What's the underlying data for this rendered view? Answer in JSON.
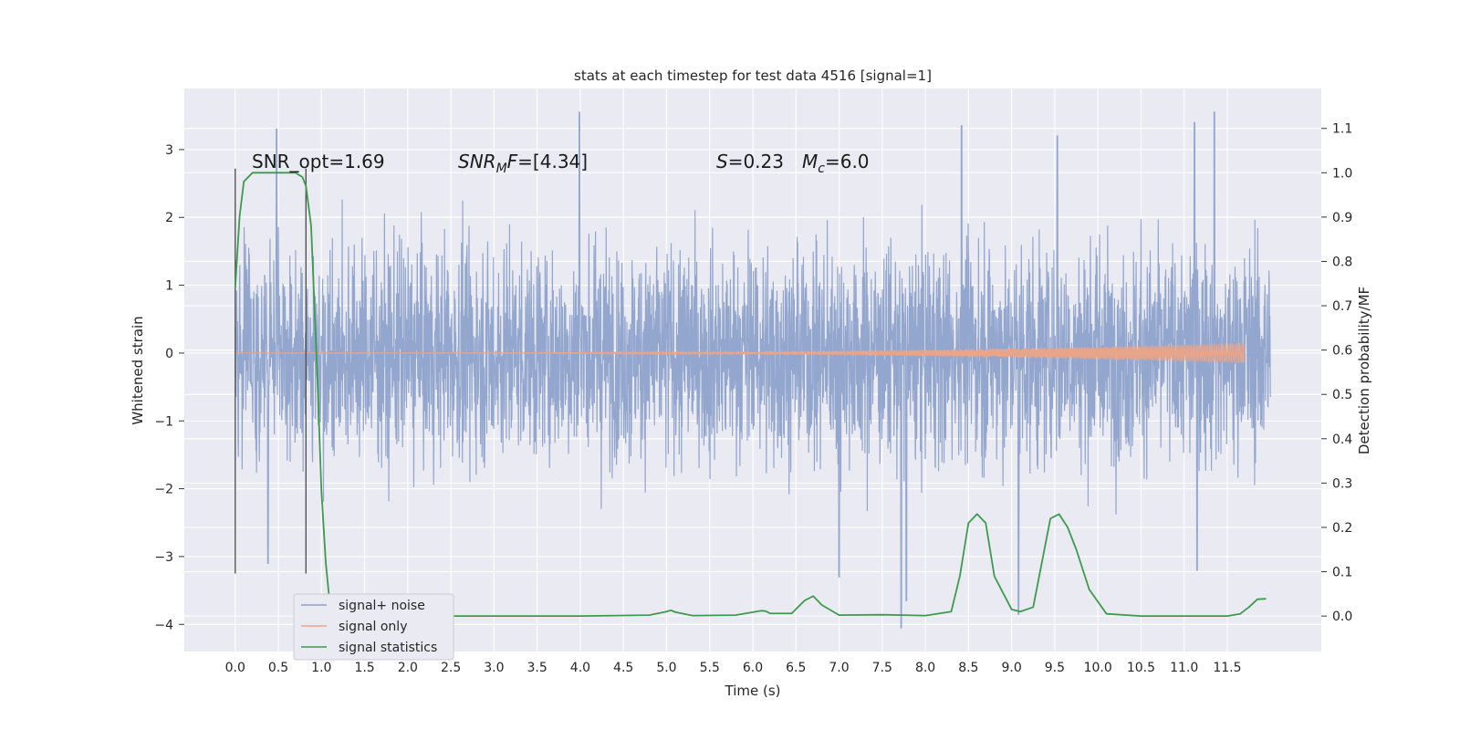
{
  "chart_data": {
    "type": "line",
    "title": "stats at each timestep for test data 4516 [signal=1]",
    "xlabel": "Time (s)",
    "ylabel": "Whitened strain",
    "y2label": "Detection probability/MF",
    "xlim": [
      -0.59,
      12.59
    ],
    "ylim": [
      -4.4,
      3.9
    ],
    "y2lim": [
      -0.08,
      1.19
    ],
    "x_ticks": [
      "0.0",
      "0.5",
      "1.0",
      "1.5",
      "2.0",
      "2.5",
      "3.0",
      "3.5",
      "4.0",
      "4.5",
      "5.0",
      "5.5",
      "6.0",
      "6.5",
      "7.0",
      "7.5",
      "8.0",
      "8.5",
      "9.0",
      "9.5",
      "10.0",
      "10.5",
      "11.0",
      "11.5"
    ],
    "y_ticks": [
      "3",
      "2",
      "1",
      "0",
      "−1",
      "−2",
      "−3",
      "−4"
    ],
    "y2_ticks": [
      "1.1",
      "1.0",
      "0.9",
      "0.8",
      "0.7",
      "0.6",
      "0.5",
      "0.4",
      "0.3",
      "0.2",
      "0.1",
      "0.0"
    ],
    "grid": true,
    "legend": {
      "placement": "lower-left",
      "entries": [
        {
          "label": "signal+ noise",
          "color": "#8ea2cb"
        },
        {
          "label": "signal only",
          "color": "#e8a58a"
        },
        {
          "label": "signal statistics",
          "color": "#3d9a4f"
        }
      ]
    },
    "annotations": [
      {
        "name": "snr-opt",
        "parts": [
          {
            "text": "SNR_opt=1.69"
          }
        ]
      },
      {
        "name": "snr-mf",
        "parts": [
          {
            "text": "SNR",
            "italic": true
          },
          {
            "text": "M",
            "italic": true,
            "sub": true
          },
          {
            "text": "F",
            "italic": true
          },
          {
            "text": "=[4.34]"
          }
        ]
      },
      {
        "name": "s-value",
        "parts": [
          {
            "text": "S",
            "italic": true
          },
          {
            "text": "=0.23"
          }
        ]
      },
      {
        "name": "mc-value",
        "parts": [
          {
            "text": "M",
            "italic": true
          },
          {
            "text": "c",
            "italic": true,
            "sub": true
          },
          {
            "text": "=6.0"
          }
        ]
      }
    ],
    "noise_envelope": {
      "x_range": [
        0.0,
        12.0
      ],
      "typical_amplitude": 2.2,
      "peaks": [
        {
          "x": 0.48,
          "y": 3.3
        },
        {
          "x": 3.99,
          "y": 3.55
        },
        {
          "x": 8.42,
          "y": 3.35
        },
        {
          "x": 9.53,
          "y": 3.2
        },
        {
          "x": 11.12,
          "y": 3.4
        },
        {
          "x": 11.35,
          "y": 3.55
        },
        {
          "x": 0.38,
          "y": -3.1
        },
        {
          "x": 7.72,
          "y": -4.05
        },
        {
          "x": 7.78,
          "y": -3.65
        },
        {
          "x": 9.08,
          "y": -3.85
        },
        {
          "x": 7.0,
          "y": -3.3
        },
        {
          "x": 11.15,
          "y": -3.2
        }
      ]
    },
    "signal_only": {
      "x_range": [
        0.0,
        11.7
      ],
      "start_amplitude": 0.0,
      "end_amplitude": 0.15
    },
    "event_markers": [
      0.0,
      0.82
    ],
    "series": [
      {
        "name": "signal statistics",
        "axis": "right",
        "x": [
          0.0,
          0.05,
          0.1,
          0.2,
          0.3,
          0.4,
          0.5,
          0.6,
          0.7,
          0.78,
          0.82,
          0.88,
          0.95,
          1.0,
          1.05,
          1.1,
          1.2,
          1.3,
          1.5,
          1.7,
          2.0,
          3.0,
          4.0,
          4.8,
          5.0,
          5.05,
          5.1,
          5.3,
          5.8,
          6.1,
          6.15,
          6.2,
          6.45,
          6.6,
          6.7,
          6.8,
          7.0,
          7.5,
          8.0,
          8.3,
          8.4,
          8.5,
          8.6,
          8.7,
          8.8,
          9.0,
          9.1,
          9.25,
          9.35,
          9.45,
          9.55,
          9.65,
          9.75,
          9.9,
          10.1,
          10.5,
          11.0,
          11.5,
          11.65,
          11.75,
          11.85,
          11.95
        ],
        "y": [
          0.74,
          0.9,
          0.98,
          1.0,
          1.0,
          1.0,
          1.0,
          1.0,
          1.0,
          0.99,
          0.97,
          0.88,
          0.55,
          0.28,
          0.12,
          0.02,
          0.003,
          0.002,
          0.006,
          0.001,
          0.0,
          0.0,
          0.0,
          0.002,
          0.01,
          0.013,
          0.009,
          0.001,
          0.002,
          0.012,
          0.011,
          0.006,
          0.006,
          0.035,
          0.045,
          0.025,
          0.002,
          0.003,
          0.001,
          0.01,
          0.09,
          0.21,
          0.23,
          0.21,
          0.09,
          0.015,
          0.01,
          0.02,
          0.12,
          0.22,
          0.23,
          0.2,
          0.15,
          0.06,
          0.005,
          0.0,
          0.0,
          0.0,
          0.005,
          0.02,
          0.038,
          0.039
        ]
      }
    ]
  }
}
